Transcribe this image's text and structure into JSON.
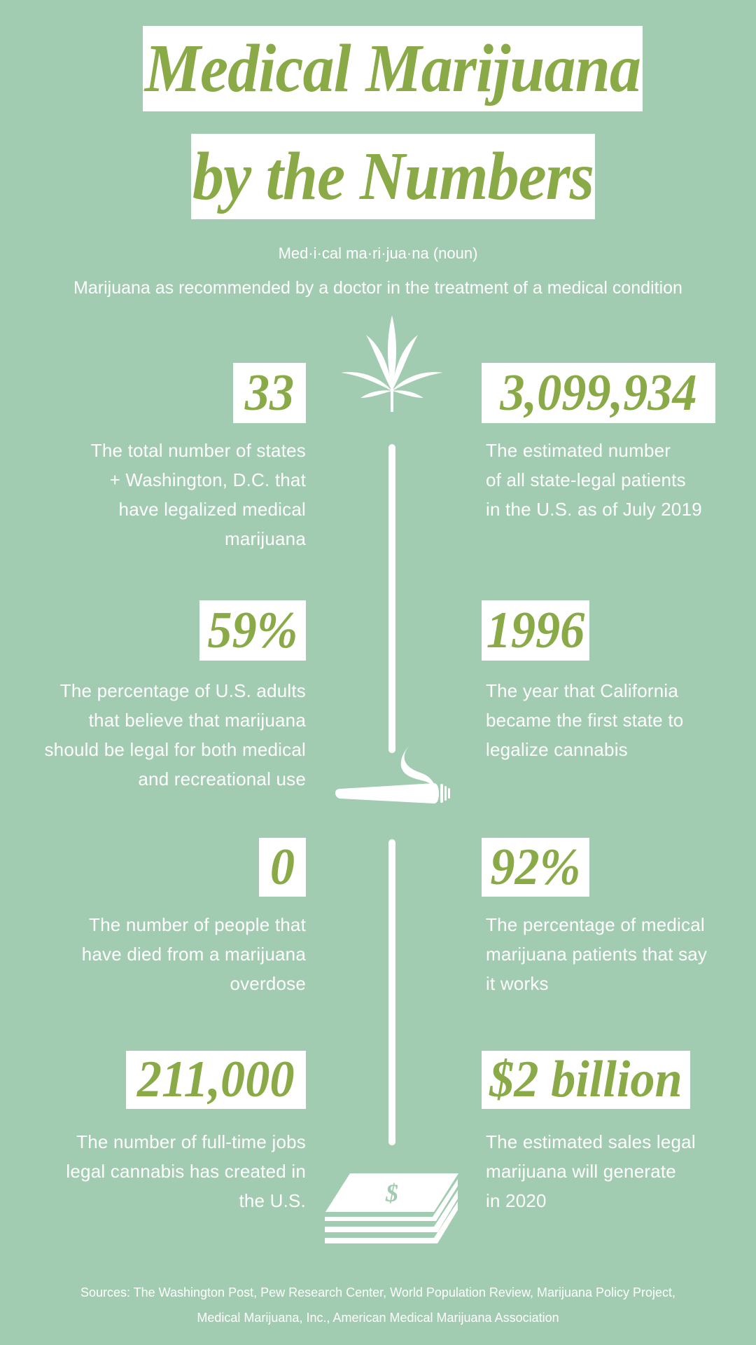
{
  "title": {
    "line1": "Medical Marijuana",
    "line2": "by the Numbers"
  },
  "pronunciation": "Med·i·cal ma·ri·jua·na (noun)",
  "definition": "Marijuana as recommended by a doctor in the treatment of a medical condition",
  "colors": {
    "background": "#a2ccb1",
    "accent": "#8aaa48",
    "box": "#ffffff"
  },
  "icons": [
    "cannabis-leaf-icon",
    "joint-icon",
    "money-stack-icon"
  ],
  "stats": [
    {
      "value": "33",
      "lines": [
        "The total number of states",
        "+ Washington, D.C. that",
        "have legalized medical",
        "marijuana"
      ]
    },
    {
      "value": "3,099,934",
      "lines": [
        "The estimated number",
        "of all state-legal patients",
        "in the U.S. as of July 2019"
      ]
    },
    {
      "value": "59%",
      "lines": [
        "The percentage of U.S. adults",
        "that believe that marijuana",
        "should be legal for both medical",
        "and recreational use"
      ]
    },
    {
      "value": "1996",
      "lines": [
        "The year that California",
        "became the first state to",
        "legalize cannabis"
      ]
    },
    {
      "value": "0",
      "lines": [
        "The number of people that",
        "have died from a marijuana",
        "overdose"
      ]
    },
    {
      "value": "92%",
      "lines": [
        "The percentage of medical",
        "marijuana patients that say",
        "it works"
      ]
    },
    {
      "value": "211,000",
      "lines": [
        "The number of full-time jobs",
        "legal cannabis has created in",
        "the U.S."
      ]
    },
    {
      "value": "$2 billion",
      "lines": [
        "The estimated sales legal",
        "marijuana will generate",
        "in 2020"
      ]
    }
  ],
  "sources": {
    "line1": "Sources: The Washington Post, Pew Research Center, World Population Review, Marijuana Policy Project,",
    "line2": "Medical Marijuana, Inc., American Medical Marijuana Association"
  }
}
